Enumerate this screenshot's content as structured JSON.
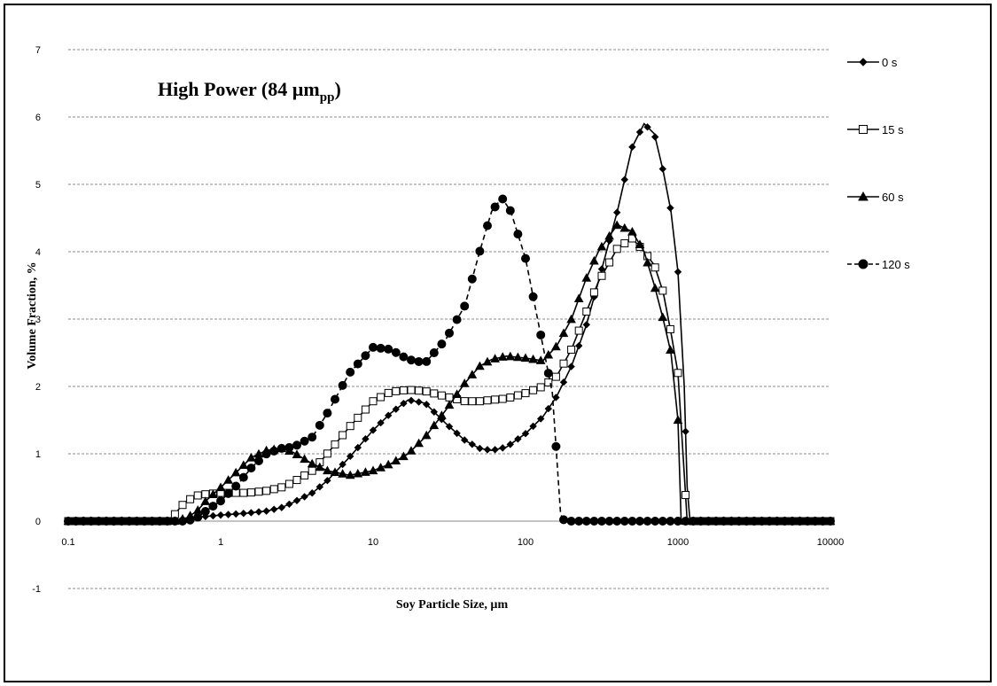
{
  "chart_data": {
    "type": "line",
    "title": "High Power (84 µm",
    "title_subscript": "pp",
    "title_close": ")",
    "xlabel": "Soy Particle Size, µm",
    "ylabel": "Volume Fraction, %",
    "x_scale": "log",
    "xlim": [
      0.1,
      10000
    ],
    "ylim": [
      -1,
      7
    ],
    "x_ticks": [
      0.1,
      1,
      10,
      100,
      1000,
      10000
    ],
    "x_tick_labels": [
      "0.1",
      "1",
      "10",
      "100",
      "1000",
      "10000"
    ],
    "y_ticks": [
      -1,
      0,
      1,
      2,
      3,
      4,
      5,
      6,
      7
    ],
    "y_tick_labels": [
      "-1",
      "0",
      "1",
      "2",
      "3",
      "4",
      "5",
      "6",
      "7"
    ],
    "grid": "horizontal dashed",
    "legend_position": "right",
    "series": [
      {
        "name": "0 s",
        "marker": "diamond",
        "line": "solid",
        "color": "#000000",
        "points": [
          [
            0.1,
            0
          ],
          [
            0.55,
            0
          ],
          [
            0.6,
            0.02
          ],
          [
            0.7,
            0.05
          ],
          [
            0.8,
            0.07
          ],
          [
            1,
            0.09
          ],
          [
            1.5,
            0.12
          ],
          [
            2,
            0.15
          ],
          [
            2.5,
            0.2
          ],
          [
            3,
            0.28
          ],
          [
            4,
            0.42
          ],
          [
            5,
            0.6
          ],
          [
            7,
            0.95
          ],
          [
            10,
            1.35
          ],
          [
            13,
            1.6
          ],
          [
            17,
            1.8
          ],
          [
            22,
            1.75
          ],
          [
            30,
            1.45
          ],
          [
            40,
            1.2
          ],
          [
            50,
            1.08
          ],
          [
            60,
            1.05
          ],
          [
            75,
            1.1
          ],
          [
            100,
            1.3
          ],
          [
            130,
            1.55
          ],
          [
            160,
            1.85
          ],
          [
            200,
            2.3
          ],
          [
            250,
            2.9
          ],
          [
            300,
            3.55
          ],
          [
            400,
            4.6
          ],
          [
            500,
            5.55
          ],
          [
            600,
            5.9
          ],
          [
            700,
            5.75
          ],
          [
            800,
            5.2
          ],
          [
            900,
            4.6
          ],
          [
            1000,
            3.7
          ],
          [
            1100,
            2.0
          ],
          [
            1150,
            0.5
          ],
          [
            1200,
            0
          ],
          [
            10000,
            0
          ]
        ]
      },
      {
        "name": "15 s",
        "marker": "square",
        "line": "solid",
        "color": "#000000",
        "points": [
          [
            0.1,
            0
          ],
          [
            0.45,
            0
          ],
          [
            0.5,
            0.1
          ],
          [
            0.55,
            0.22
          ],
          [
            0.6,
            0.3
          ],
          [
            0.7,
            0.38
          ],
          [
            0.8,
            0.4
          ],
          [
            1,
            0.42
          ],
          [
            1.5,
            0.42
          ],
          [
            2,
            0.45
          ],
          [
            2.5,
            0.5
          ],
          [
            3,
            0.58
          ],
          [
            4,
            0.75
          ],
          [
            5,
            1.0
          ],
          [
            7,
            1.4
          ],
          [
            10,
            1.78
          ],
          [
            13,
            1.92
          ],
          [
            17,
            1.95
          ],
          [
            22,
            1.93
          ],
          [
            30,
            1.85
          ],
          [
            40,
            1.78
          ],
          [
            50,
            1.78
          ],
          [
            60,
            1.8
          ],
          [
            75,
            1.82
          ],
          [
            100,
            1.9
          ],
          [
            130,
            2.0
          ],
          [
            160,
            2.15
          ],
          [
            200,
            2.55
          ],
          [
            250,
            3.1
          ],
          [
            300,
            3.55
          ],
          [
            400,
            4.05
          ],
          [
            500,
            4.2
          ],
          [
            600,
            4.0
          ],
          [
            700,
            3.8
          ],
          [
            800,
            3.4
          ],
          [
            900,
            2.8
          ],
          [
            1000,
            2.2
          ],
          [
            1100,
            0.7
          ],
          [
            1150,
            0
          ],
          [
            10000,
            0
          ]
        ]
      },
      {
        "name": "60 s",
        "marker": "triangle",
        "line": "solid",
        "color": "#000000",
        "points": [
          [
            0.1,
            0
          ],
          [
            0.5,
            0
          ],
          [
            0.6,
            0.05
          ],
          [
            0.7,
            0.15
          ],
          [
            0.8,
            0.3
          ],
          [
            1,
            0.5
          ],
          [
            1.3,
            0.75
          ],
          [
            1.6,
            0.95
          ],
          [
            2,
            1.05
          ],
          [
            2.5,
            1.08
          ],
          [
            3,
            1.02
          ],
          [
            4,
            0.85
          ],
          [
            5,
            0.75
          ],
          [
            7,
            0.68
          ],
          [
            10,
            0.75
          ],
          [
            13,
            0.85
          ],
          [
            17,
            1.0
          ],
          [
            22,
            1.25
          ],
          [
            30,
            1.65
          ],
          [
            40,
            2.05
          ],
          [
            50,
            2.3
          ],
          [
            60,
            2.4
          ],
          [
            75,
            2.45
          ],
          [
            100,
            2.42
          ],
          [
            130,
            2.38
          ],
          [
            160,
            2.6
          ],
          [
            200,
            3.0
          ],
          [
            250,
            3.6
          ],
          [
            300,
            4.0
          ],
          [
            400,
            4.4
          ],
          [
            500,
            4.3
          ],
          [
            600,
            4.0
          ],
          [
            700,
            3.5
          ],
          [
            800,
            3.0
          ],
          [
            900,
            2.5
          ],
          [
            1000,
            1.5
          ],
          [
            1050,
            0
          ],
          [
            10000,
            0
          ]
        ]
      },
      {
        "name": "120 s",
        "marker": "circle",
        "line": "dashed",
        "color": "#000000",
        "points": [
          [
            0.1,
            0
          ],
          [
            0.6,
            0
          ],
          [
            0.7,
            0.05
          ],
          [
            0.8,
            0.15
          ],
          [
            1,
            0.3
          ],
          [
            1.3,
            0.55
          ],
          [
            1.6,
            0.8
          ],
          [
            2,
            1.0
          ],
          [
            2.5,
            1.08
          ],
          [
            3,
            1.1
          ],
          [
            4,
            1.25
          ],
          [
            5,
            1.6
          ],
          [
            7,
            2.2
          ],
          [
            10,
            2.58
          ],
          [
            13,
            2.55
          ],
          [
            17,
            2.4
          ],
          [
            22,
            2.35
          ],
          [
            30,
            2.7
          ],
          [
            40,
            3.2
          ],
          [
            50,
            4.0
          ],
          [
            60,
            4.6
          ],
          [
            70,
            4.8
          ],
          [
            80,
            4.6
          ],
          [
            100,
            3.9
          ],
          [
            120,
            3.0
          ],
          [
            150,
            1.9
          ],
          [
            170,
            0.1
          ],
          [
            180,
            0
          ],
          [
            10000,
            0
          ]
        ]
      }
    ]
  }
}
